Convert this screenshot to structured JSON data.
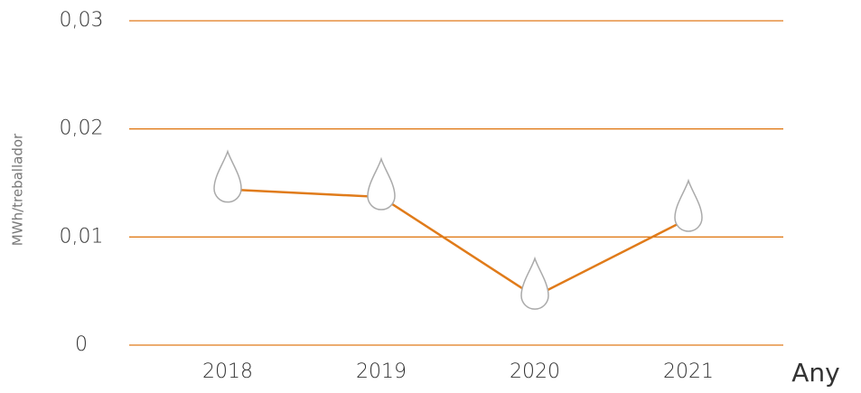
{
  "chart_data": {
    "type": "line",
    "y_label": "MWh/treballador",
    "x_label": "Any",
    "categories": [
      "2018",
      "2019",
      "2020",
      "2021"
    ],
    "series": [
      {
        "name": "MWh/treballador",
        "color": "#e07b1a",
        "values": [
          0.0144,
          0.0137,
          0.0045,
          0.0117
        ]
      }
    ],
    "ylim": [
      0,
      0.03
    ],
    "yticks": [
      0,
      {
        "value": 0.01,
        "label": "0,01"
      },
      {
        "value": 0.02,
        "label": "0,02"
      },
      {
        "value": 0.03,
        "label": "0,03"
      }
    ],
    "grid": true,
    "grid_color": "#e07b1a",
    "marker_color": "#aaaaaa"
  }
}
